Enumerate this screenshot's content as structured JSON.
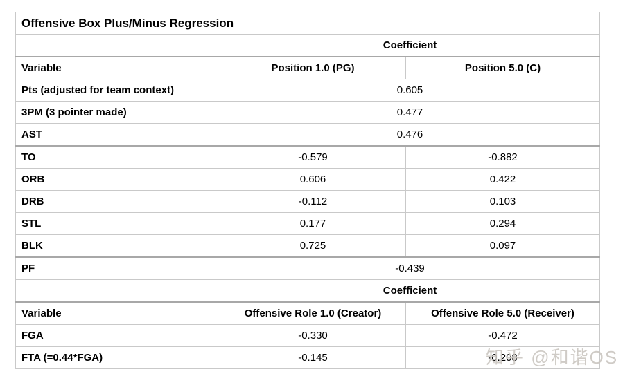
{
  "colors": {
    "background": "#ffffff",
    "table_border": "#c9c9c9",
    "table_border_strong": "#a8a8a8",
    "text": "#000000",
    "watermark_text": "#cac6c0"
  },
  "chart_data": {
    "type": "table",
    "title": "Offensive Box Plus/Minus Regression",
    "layout_hint": "two stacked sections; each has a 'Coefficient' band header spanning two value columns; some values span both columns (merged)",
    "sections": [
      {
        "group_header": "Coefficient",
        "sub_headers": [
          "Variable",
          "Position 1.0 (PG)",
          "Position 5.0 (C)"
        ],
        "rows_merged": [
          {
            "label": "Pts (adjusted for team context)",
            "value": "0.605"
          },
          {
            "label": "3PM (3 pointer made)",
            "value": "0.477"
          },
          {
            "label": "AST",
            "value": "0.476"
          }
        ],
        "rows_split": [
          {
            "label": "TO",
            "values": [
              "-0.579",
              "-0.882"
            ]
          },
          {
            "label": "ORB",
            "values": [
              "0.606",
              "0.422"
            ]
          },
          {
            "label": "DRB",
            "values": [
              "-0.112",
              "0.103"
            ]
          },
          {
            "label": "STL",
            "values": [
              "0.177",
              "0.294"
            ]
          },
          {
            "label": "BLK",
            "values": [
              "0.725",
              "0.097"
            ]
          }
        ],
        "rows_merged_after": [
          {
            "label": "PF",
            "value": "-0.439"
          }
        ]
      },
      {
        "group_header": "Coefficient",
        "sub_headers": [
          "Variable",
          "Offensive Role 1.0 (Creator)",
          "Offensive Role 5.0 (Receiver)"
        ],
        "rows_split": [
          {
            "label": "FGA",
            "values": [
              "-0.330",
              "-0.472"
            ]
          },
          {
            "label": "FTA (=0.44*FGA)",
            "values": [
              "-0.145",
              "-0.208"
            ]
          }
        ]
      }
    ]
  },
  "watermark": {
    "text": "知乎 @和谐OS"
  }
}
